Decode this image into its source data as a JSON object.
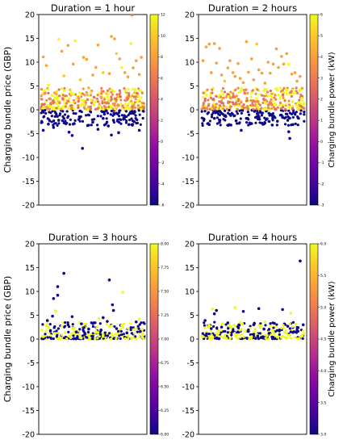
{
  "figure": {
    "y_axis_label": "Charging bundle price (GBP)",
    "colorbar_label": "Charging bundle power (kW)",
    "colormap": "plasma"
  },
  "chart_data": [
    {
      "type": "scatter",
      "title": "Duration = 1 hour",
      "ylabel": "Charging bundle price (GBP)",
      "ylim": [
        -20,
        20
      ],
      "yticks": [
        20,
        15,
        10,
        5,
        0,
        -5,
        -10,
        -15,
        -20
      ],
      "xticks": [],
      "grid": false,
      "colorbar": {
        "label": "",
        "range": [
          -6,
          12
        ],
        "ticks": [
          12,
          10,
          8,
          6,
          4,
          2,
          0,
          -2,
          -4,
          -6
        ]
      },
      "points": [
        [
          0.02,
          11.1,
          8
        ],
        [
          0.05,
          9.3,
          8
        ],
        [
          0.07,
          5.2,
          12
        ],
        [
          0.08,
          0.8,
          12
        ],
        [
          0.11,
          0.5,
          12
        ],
        [
          0.15,
          3.8,
          11
        ],
        [
          0.17,
          14.8,
          12
        ],
        [
          0.2,
          12.3,
          8
        ],
        [
          0.22,
          7.1,
          10
        ],
        [
          0.26,
          13.5,
          8
        ],
        [
          0.28,
          4.2,
          10
        ],
        [
          0.31,
          9.6,
          8
        ],
        [
          0.33,
          14.5,
          12
        ],
        [
          0.36,
          2.6,
          8
        ],
        [
          0.38,
          6.3,
          10
        ],
        [
          0.41,
          11.0,
          8
        ],
        [
          0.44,
          10.6,
          8
        ],
        [
          0.46,
          4.6,
          9
        ],
        [
          0.5,
          7.3,
          8
        ],
        [
          0.53,
          8.9,
          8
        ],
        [
          0.55,
          13.6,
          8
        ],
        [
          0.58,
          2.7,
          8
        ],
        [
          0.6,
          7.8,
          10
        ],
        [
          0.63,
          3.4,
          10
        ],
        [
          0.66,
          7.6,
          8
        ],
        [
          0.68,
          15.4,
          8
        ],
        [
          0.71,
          14.9,
          8
        ],
        [
          0.73,
          11.8,
          10
        ],
        [
          0.76,
          10.7,
          8
        ],
        [
          0.78,
          8.9,
          12
        ],
        [
          0.81,
          7.8,
          8
        ],
        [
          0.84,
          6.9,
          8
        ],
        [
          0.87,
          13.9,
          12
        ],
        [
          0.89,
          8.8,
          8
        ],
        [
          0.92,
          10.3,
          8
        ],
        [
          0.95,
          7.4,
          8
        ],
        [
          0.97,
          11.0,
          8
        ],
        [
          0.88,
          19.9,
          6
        ],
        [
          0.4,
          -8.1,
          -6
        ],
        [
          0.02,
          -4.3,
          -6
        ],
        [
          0.07,
          -3.0,
          -6
        ],
        [
          0.12,
          -3.7,
          -6
        ],
        [
          0.17,
          -2.2,
          -6
        ],
        [
          0.22,
          -1.8,
          -6
        ],
        [
          0.27,
          -4.7,
          -6
        ],
        [
          0.32,
          -2.9,
          -6
        ],
        [
          0.37,
          -1.5,
          -6
        ],
        [
          0.45,
          -3.3,
          -6
        ],
        [
          0.5,
          -2.6,
          -6
        ],
        [
          0.55,
          -4.1,
          -6
        ],
        [
          0.6,
          -1.8,
          -6
        ],
        [
          0.65,
          -3.4,
          -6
        ],
        [
          0.7,
          -2.2,
          -6
        ],
        [
          0.75,
          -4.8,
          -6
        ],
        [
          0.8,
          -1.7,
          -6
        ],
        [
          0.85,
          -3.1,
          -6
        ],
        [
          0.9,
          -2.5,
          -6
        ],
        [
          0.95,
          -4.3,
          -6
        ],
        [
          0.3,
          -5.4,
          -6
        ],
        [
          0.68,
          -5.3,
          -6
        ]
      ]
    },
    {
      "type": "scatter",
      "title": "Duration = 2 hours",
      "ylabel": "",
      "ylim": [
        -20,
        20
      ],
      "yticks": [
        20,
        15,
        10,
        5,
        0,
        -5,
        -10,
        -15,
        -20
      ],
      "xticks": [],
      "grid": false,
      "colorbar": {
        "label": "Charging bundle power (kW)",
        "range": [
          -3,
          6
        ],
        "ticks": [
          6,
          5,
          4,
          3,
          2,
          1,
          0,
          -1,
          -2,
          -3
        ]
      },
      "points": [
        [
          0.02,
          10.3,
          4
        ],
        [
          0.05,
          13.2,
          4
        ],
        [
          0.08,
          13.8,
          4
        ],
        [
          0.1,
          7.8,
          4
        ],
        [
          0.13,
          13.9,
          4
        ],
        [
          0.15,
          9.8,
          4
        ],
        [
          0.18,
          12.9,
          4
        ],
        [
          0.2,
          7.3,
          4
        ],
        [
          0.23,
          6.0,
          5
        ],
        [
          0.26,
          8.8,
          4
        ],
        [
          0.28,
          10.3,
          4
        ],
        [
          0.31,
          7.8,
          4
        ],
        [
          0.33,
          7.0,
          4
        ],
        [
          0.36,
          9.7,
          4
        ],
        [
          0.38,
          6.6,
          4
        ],
        [
          0.41,
          5.7,
          4
        ],
        [
          0.44,
          14.3,
          4
        ],
        [
          0.46,
          7.9,
          4
        ],
        [
          0.49,
          10.7,
          4
        ],
        [
          0.51,
          6.3,
          4
        ],
        [
          0.54,
          13.8,
          5
        ],
        [
          0.56,
          8.4,
          4
        ],
        [
          0.59,
          7.7,
          4
        ],
        [
          0.62,
          5.6,
          4
        ],
        [
          0.65,
          10.0,
          4
        ],
        [
          0.67,
          7.7,
          4
        ],
        [
          0.7,
          9.6,
          4
        ],
        [
          0.73,
          12.8,
          4
        ],
        [
          0.75,
          8.9,
          4
        ],
        [
          0.78,
          11.2,
          4
        ],
        [
          0.8,
          9.6,
          4
        ],
        [
          0.83,
          11.8,
          4
        ],
        [
          0.85,
          9.6,
          6
        ],
        [
          0.88,
          7.5,
          4
        ],
        [
          0.91,
          7.8,
          4
        ],
        [
          0.93,
          6.0,
          4
        ],
        [
          0.96,
          7.0,
          4
        ],
        [
          0.98,
          4.5,
          4
        ],
        [
          0.03,
          -2.0,
          -3
        ],
        [
          0.08,
          -3.1,
          -3
        ],
        [
          0.13,
          -1.8,
          -3
        ],
        [
          0.18,
          -2.6,
          -3
        ],
        [
          0.24,
          -1.4,
          -3
        ],
        [
          0.29,
          -3.2,
          -3
        ],
        [
          0.34,
          -2.3,
          -3
        ],
        [
          0.39,
          -4.3,
          -3
        ],
        [
          0.44,
          -1.8,
          -3
        ],
        [
          0.49,
          -2.9,
          -3
        ],
        [
          0.54,
          -1.5,
          -3
        ],
        [
          0.59,
          -2.8,
          -3
        ],
        [
          0.64,
          -1.9,
          -3
        ],
        [
          0.69,
          -3.2,
          -3
        ],
        [
          0.74,
          -2.4,
          -3
        ],
        [
          0.79,
          -1.6,
          -3
        ],
        [
          0.84,
          -2.2,
          -3
        ],
        [
          0.89,
          -3.1,
          -3
        ],
        [
          0.94,
          -1.7,
          -3
        ],
        [
          0.85,
          -4.6,
          -3
        ],
        [
          0.86,
          -6.0,
          -3
        ]
      ]
    },
    {
      "type": "scatter",
      "title": "Duration = 3 hours",
      "ylabel": "Charging bundle price (GBP)",
      "ylim": [
        -20,
        20
      ],
      "yticks": [
        20,
        15,
        10,
        5,
        0,
        -5,
        -10,
        -15,
        -20
      ],
      "xticks": [],
      "grid": false,
      "colorbar": {
        "label": "",
        "range": [
          6.0,
          8.0
        ],
        "ticks": [
          "8.00",
          "7.75",
          "7.50",
          "7.25",
          "7.00",
          "6.75",
          "6.50",
          "6.25",
          "6.00"
        ]
      },
      "points": [
        [
          0.22,
          13.8,
          6
        ],
        [
          0.16,
          11.0,
          6
        ],
        [
          0.16,
          9.2,
          6
        ],
        [
          0.12,
          8.5,
          6
        ],
        [
          0.66,
          12.4,
          6
        ],
        [
          0.7,
          6.0,
          6
        ],
        [
          0.69,
          7.2,
          6
        ],
        [
          0.79,
          9.8,
          8
        ],
        [
          0.14,
          5.9,
          8
        ],
        [
          0.6,
          4.5,
          6
        ],
        [
          0.06,
          3.9,
          6
        ],
        [
          0.11,
          4.8,
          6
        ],
        [
          0.09,
          1.8,
          6
        ],
        [
          0.26,
          3.0,
          6
        ],
        [
          0.3,
          4.7,
          6
        ],
        [
          0.34,
          1.5,
          6
        ],
        [
          0.39,
          3.2,
          6
        ],
        [
          0.46,
          2.1,
          6
        ],
        [
          0.51,
          3.4,
          6
        ],
        [
          0.58,
          1.9,
          6
        ],
        [
          0.64,
          3.7,
          6
        ],
        [
          0.73,
          2.2,
          6
        ],
        [
          0.77,
          2.9,
          6
        ],
        [
          0.83,
          1.3,
          6
        ],
        [
          0.87,
          2.4,
          6
        ],
        [
          0.92,
          3.6,
          6
        ],
        [
          0.96,
          1.6,
          6
        ],
        [
          0.5,
          0.6,
          6
        ],
        [
          0.02,
          0.5,
          8
        ],
        [
          0.07,
          2.4,
          8
        ],
        [
          0.13,
          1.2,
          8
        ],
        [
          0.2,
          2.7,
          8
        ],
        [
          0.27,
          0.6,
          8
        ],
        [
          0.32,
          2.3,
          8
        ],
        [
          0.37,
          0.9,
          8
        ],
        [
          0.42,
          3.1,
          8
        ],
        [
          0.48,
          1.1,
          8
        ],
        [
          0.54,
          2.5,
          8
        ],
        [
          0.6,
          0.8,
          8
        ],
        [
          0.66,
          2.6,
          8
        ],
        [
          0.72,
          1.0,
          8
        ],
        [
          0.78,
          2.9,
          8
        ],
        [
          0.84,
          0.7,
          8
        ],
        [
          0.9,
          2.0,
          8
        ],
        [
          0.95,
          4.2,
          8
        ],
        [
          0.98,
          0.4,
          8
        ],
        [
          0.18,
          0.3,
          8
        ],
        [
          0.56,
          4.3,
          8
        ]
      ]
    },
    {
      "type": "scatter",
      "title": "Duration = 4 hours",
      "ylabel": "",
      "ylim": [
        -20,
        20
      ],
      "yticks": [
        20,
        15,
        10,
        5,
        0,
        -5,
        -10,
        -15,
        -20
      ],
      "xticks": [],
      "grid": false,
      "colorbar": {
        "label": "Charging bundle power (kW)",
        "range": [
          3.0,
          6.0
        ],
        "ticks": [
          "6.0",
          "5.5",
          "5.0",
          "4.5",
          "4.0",
          "3.5",
          "3.0"
        ]
      },
      "points": [
        [
          0.96,
          16.4,
          3
        ],
        [
          0.15,
          6.0,
          3
        ],
        [
          0.13,
          5.3,
          3
        ],
        [
          0.41,
          5.8,
          3
        ],
        [
          0.56,
          6.4,
          3
        ],
        [
          0.79,
          6.2,
          3
        ],
        [
          0.04,
          3.9,
          3
        ],
        [
          0.1,
          2.2,
          3
        ],
        [
          0.2,
          2.5,
          3
        ],
        [
          0.26,
          3.4,
          3
        ],
        [
          0.31,
          1.7,
          3
        ],
        [
          0.37,
          2.9,
          3
        ],
        [
          0.46,
          1.6,
          3
        ],
        [
          0.51,
          3.0,
          3
        ],
        [
          0.61,
          2.1,
          3
        ],
        [
          0.66,
          1.2,
          3
        ],
        [
          0.71,
          3.3,
          3
        ],
        [
          0.76,
          1.9,
          3
        ],
        [
          0.84,
          2.7,
          3
        ],
        [
          0.89,
          1.4,
          3
        ],
        [
          0.94,
          2.4,
          3
        ],
        [
          0.99,
          3.0,
          3
        ],
        [
          0.05,
          0.7,
          3
        ],
        [
          0.55,
          0.6,
          3
        ],
        [
          0.11,
          6.3,
          6
        ],
        [
          0.33,
          6.6,
          6
        ],
        [
          0.87,
          5.4,
          6
        ],
        [
          0.02,
          0.5,
          6
        ],
        [
          0.08,
          2.9,
          6
        ],
        [
          0.17,
          1.2,
          6
        ],
        [
          0.23,
          0.6,
          6
        ],
        [
          0.29,
          2.4,
          6
        ],
        [
          0.35,
          0.9,
          6
        ],
        [
          0.43,
          1.7,
          6
        ],
        [
          0.49,
          0.5,
          6
        ],
        [
          0.58,
          2.8,
          6
        ],
        [
          0.64,
          0.7,
          6
        ],
        [
          0.69,
          1.9,
          6
        ],
        [
          0.74,
          0.4,
          6
        ],
        [
          0.81,
          1.4,
          6
        ],
        [
          0.86,
          0.8,
          6
        ],
        [
          0.92,
          3.1,
          6
        ],
        [
          0.97,
          0.6,
          6
        ],
        [
          0.4,
          3.2,
          6
        ],
        [
          0.62,
          3.6,
          6
        ]
      ]
    }
  ]
}
